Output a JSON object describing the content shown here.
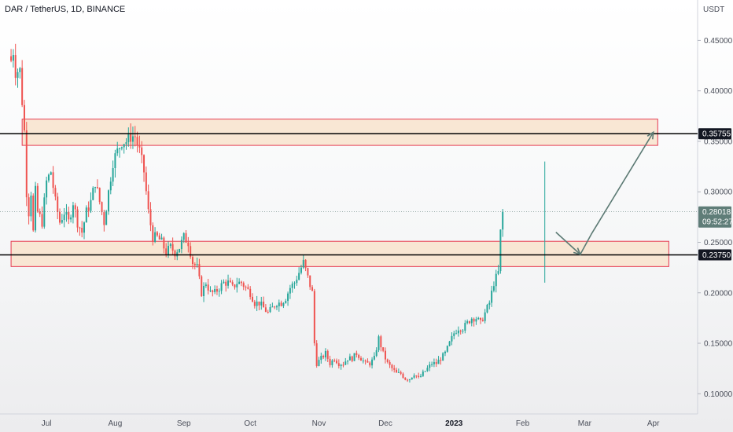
{
  "header": {
    "title": "DAR / TetherUS, 1D, BINANCE"
  },
  "axis": {
    "unit": "USDT"
  },
  "colors": {
    "up": "#26a69a",
    "down": "#ef5350",
    "zone_fill": "#f8e3cc",
    "zone_stroke": "#e53950",
    "line": "#000000",
    "arrow": "#5c7a74",
    "badge_dark": "#131722",
    "badge_price": "#5f7d78"
  },
  "chart_data": {
    "type": "candlestick",
    "title": "DAR / TetherUS, 1D, BINANCE",
    "ylabel": "USDT",
    "ylim": [
      0.08,
      0.49
    ],
    "y_ticks": [
      "0.10000",
      "0.15000",
      "0.20000",
      "0.25000",
      "0.30000",
      "0.35000",
      "0.40000",
      "0.45000"
    ],
    "x_ticks": [
      "Jul",
      "Aug",
      "Sep",
      "Oct",
      "Nov",
      "Dec",
      "2023",
      "Feb",
      "Mar",
      "Apr"
    ],
    "x_tick_days": [
      16,
      47,
      78,
      108,
      139,
      169,
      200,
      231,
      259,
      290
    ],
    "last_day": 241,
    "xlim": [
      -5,
      310
    ],
    "zones": [
      {
        "from_day": 5,
        "to_day": 292,
        "top": 0.372,
        "bottom": 0.346
      },
      {
        "from_day": 0,
        "to_day": 297,
        "top": 0.251,
        "bottom": 0.226
      }
    ],
    "levels": [
      {
        "value": 0.35755,
        "label": "0.35755"
      },
      {
        "value": 0.2375,
        "label": "0.23750"
      }
    ],
    "current_price": {
      "value": 0.28018,
      "label": "0.28018",
      "countdown": "09:52:27"
    },
    "projection_path": [
      {
        "day": 246,
        "value": 0.26
      },
      {
        "day": 257,
        "value": 0.238
      },
      {
        "day": 262,
        "value": 0.258
      },
      {
        "day": 290,
        "value": 0.359
      }
    ],
    "anchors": [
      [
        0,
        0.43
      ],
      [
        1,
        0.44
      ],
      [
        2,
        0.42
      ],
      [
        4,
        0.42
      ],
      [
        6,
        0.36
      ],
      [
        7,
        0.3
      ],
      [
        8,
        0.28
      ],
      [
        9,
        0.3
      ],
      [
        10,
        0.26
      ],
      [
        11,
        0.3
      ],
      [
        12,
        0.28
      ],
      [
        14,
        0.27
      ],
      [
        16,
        0.31
      ],
      [
        18,
        0.32
      ],
      [
        20,
        0.29
      ],
      [
        22,
        0.27
      ],
      [
        24,
        0.28
      ],
      [
        26,
        0.27
      ],
      [
        28,
        0.29
      ],
      [
        30,
        0.27
      ],
      [
        32,
        0.26
      ],
      [
        34,
        0.28
      ],
      [
        36,
        0.29
      ],
      [
        38,
        0.31
      ],
      [
        40,
        0.29
      ],
      [
        42,
        0.27
      ],
      [
        44,
        0.3
      ],
      [
        46,
        0.33
      ],
      [
        48,
        0.34
      ],
      [
        50,
        0.35
      ],
      [
        52,
        0.35
      ],
      [
        54,
        0.355
      ],
      [
        56,
        0.355
      ],
      [
        58,
        0.34
      ],
      [
        60,
        0.32
      ],
      [
        62,
        0.28
      ],
      [
        64,
        0.255
      ],
      [
        66,
        0.255
      ],
      [
        68,
        0.25
      ],
      [
        70,
        0.24
      ],
      [
        72,
        0.245
      ],
      [
        74,
        0.24
      ],
      [
        76,
        0.245
      ],
      [
        78,
        0.255
      ],
      [
        80,
        0.25
      ],
      [
        82,
        0.23
      ],
      [
        84,
        0.225
      ],
      [
        86,
        0.2
      ],
      [
        88,
        0.21
      ],
      [
        90,
        0.2
      ],
      [
        92,
        0.2
      ],
      [
        94,
        0.205
      ],
      [
        96,
        0.21
      ],
      [
        98,
        0.21
      ],
      [
        100,
        0.205
      ],
      [
        102,
        0.21
      ],
      [
        104,
        0.21
      ],
      [
        106,
        0.205
      ],
      [
        108,
        0.2
      ],
      [
        110,
        0.19
      ],
      [
        112,
        0.19
      ],
      [
        114,
        0.185
      ],
      [
        116,
        0.18
      ],
      [
        118,
        0.185
      ],
      [
        120,
        0.19
      ],
      [
        122,
        0.19
      ],
      [
        124,
        0.195
      ],
      [
        126,
        0.205
      ],
      [
        128,
        0.21
      ],
      [
        130,
        0.22
      ],
      [
        132,
        0.23
      ],
      [
        134,
        0.215
      ],
      [
        136,
        0.2
      ],
      [
        137,
        0.15
      ],
      [
        138,
        0.13
      ],
      [
        140,
        0.135
      ],
      [
        142,
        0.14
      ],
      [
        144,
        0.13
      ],
      [
        146,
        0.135
      ],
      [
        148,
        0.13
      ],
      [
        150,
        0.13
      ],
      [
        152,
        0.135
      ],
      [
        154,
        0.135
      ],
      [
        156,
        0.14
      ],
      [
        158,
        0.135
      ],
      [
        160,
        0.13
      ],
      [
        162,
        0.13
      ],
      [
        164,
        0.135
      ],
      [
        166,
        0.155
      ],
      [
        168,
        0.14
      ],
      [
        170,
        0.13
      ],
      [
        172,
        0.125
      ],
      [
        174,
        0.12
      ],
      [
        176,
        0.12
      ],
      [
        178,
        0.115
      ],
      [
        180,
        0.115
      ],
      [
        182,
        0.12
      ],
      [
        184,
        0.115
      ],
      [
        186,
        0.12
      ],
      [
        188,
        0.125
      ],
      [
        190,
        0.13
      ],
      [
        192,
        0.13
      ],
      [
        194,
        0.135
      ],
      [
        196,
        0.14
      ],
      [
        198,
        0.15
      ],
      [
        200,
        0.16
      ],
      [
        202,
        0.165
      ],
      [
        204,
        0.165
      ],
      [
        206,
        0.17
      ],
      [
        208,
        0.175
      ],
      [
        210,
        0.175
      ],
      [
        212,
        0.17
      ],
      [
        214,
        0.18
      ],
      [
        216,
        0.19
      ],
      [
        218,
        0.21
      ],
      [
        220,
        0.22
      ],
      [
        221,
        0.26
      ],
      [
        222,
        0.28018
      ]
    ]
  }
}
